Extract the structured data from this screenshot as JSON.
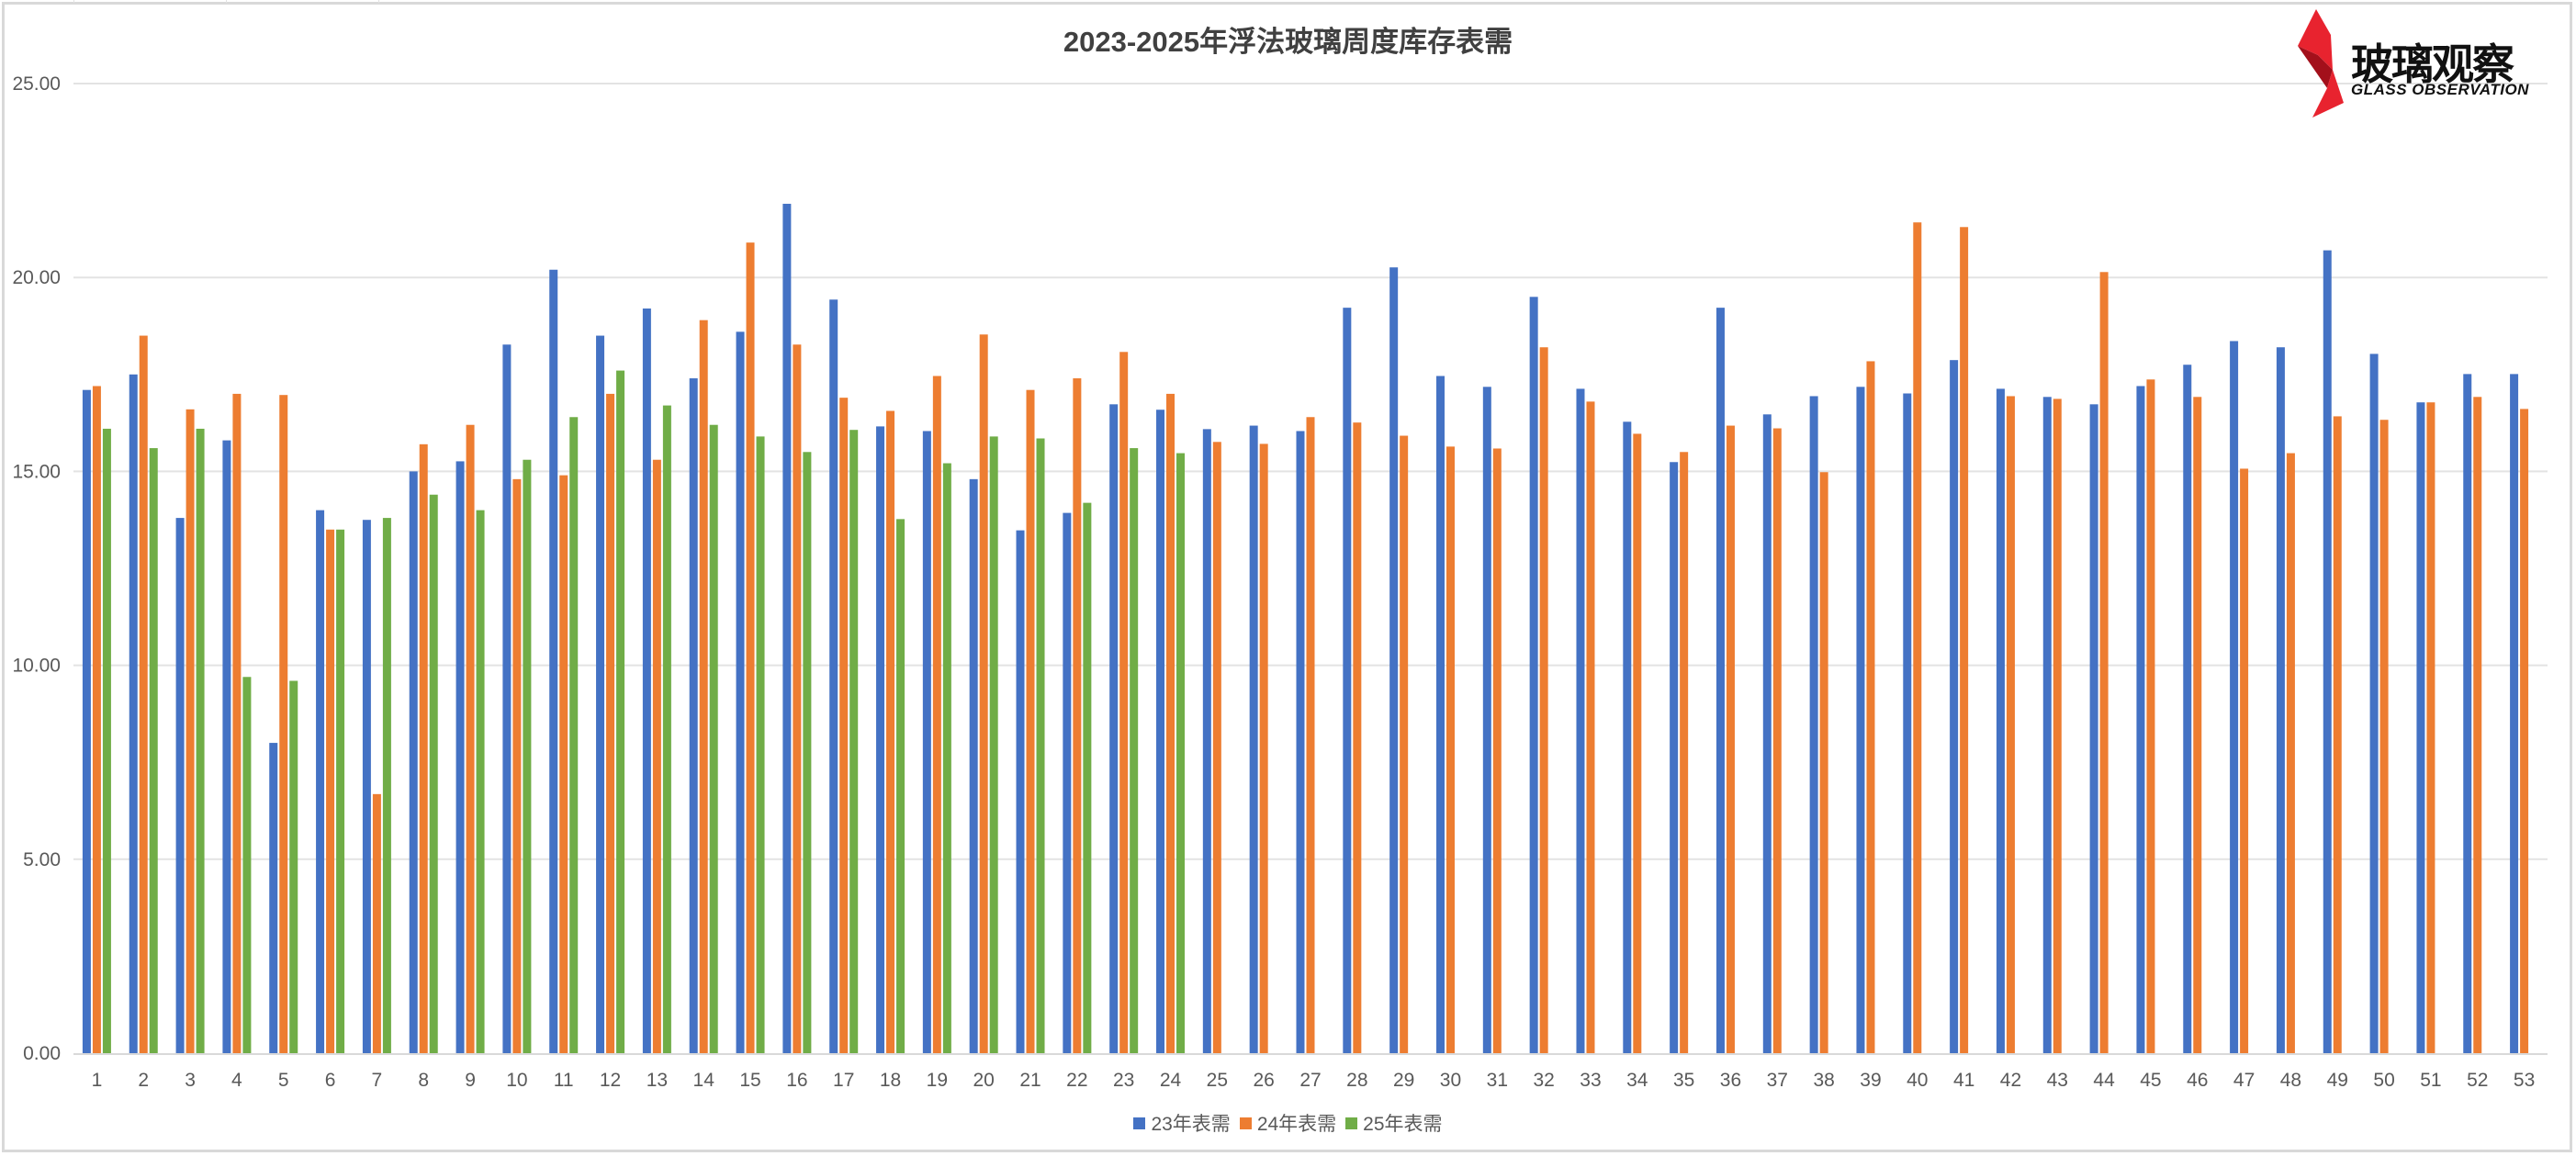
{
  "title": "2023-2025年浮法玻璃周度库存表需",
  "logo": {
    "cn_text": "玻璃观察",
    "en_text": "GLASS OBSERVATION",
    "accent_color": "#e8232f",
    "accent_dark": "#a3101b"
  },
  "legend": [
    {
      "label": "23年表需",
      "color": "#4472c4"
    },
    {
      "label": "24年表需",
      "color": "#ed7d31"
    },
    {
      "label": "25年表需",
      "color": "#70ad47"
    }
  ],
  "chart_data": {
    "type": "bar",
    "title": "2023-2025年浮法玻璃周度库存表需",
    "xlabel": "",
    "ylabel": "",
    "ylim": [
      0,
      25
    ],
    "y_ticks": [
      "0.00",
      "5.00",
      "10.00",
      "15.00",
      "20.00",
      "25.00"
    ],
    "grid": true,
    "legend_position": "bottom",
    "categories": [
      "1",
      "2",
      "3",
      "4",
      "5",
      "6",
      "7",
      "8",
      "9",
      "10",
      "11",
      "12",
      "13",
      "14",
      "15",
      "16",
      "17",
      "18",
      "19",
      "20",
      "21",
      "22",
      "23",
      "24",
      "25",
      "26",
      "27",
      "28",
      "29",
      "30",
      "31",
      "32",
      "33",
      "34",
      "35",
      "36",
      "37",
      "38",
      "39",
      "40",
      "41",
      "42",
      "43",
      "44",
      "45",
      "46",
      "47",
      "48",
      "49",
      "50",
      "51",
      "52",
      "53"
    ],
    "series": [
      {
        "name": "23年表需",
        "color": "#4472c4",
        "values": [
          17.1,
          17.5,
          13.8,
          15.8,
          8.0,
          14.0,
          13.75,
          15.0,
          15.26,
          18.27,
          20.2,
          18.5,
          19.2,
          17.4,
          18.6,
          21.9,
          19.43,
          16.16,
          16.04,
          14.8,
          13.48,
          13.93,
          16.73,
          16.59,
          16.09,
          16.18,
          16.04,
          19.22,
          20.26,
          17.46,
          17.18,
          19.5,
          17.13,
          16.28,
          15.24,
          19.22,
          16.47,
          16.94,
          17.18,
          17.01,
          17.87,
          17.13,
          16.92,
          16.73,
          17.2,
          17.75,
          18.36,
          18.2,
          20.7,
          18.03,
          16.78,
          17.51,
          17.51
        ]
      },
      {
        "name": "24年表需",
        "color": "#ed7d31",
        "values": [
          17.2,
          18.5,
          16.6,
          17.0,
          16.97,
          13.5,
          6.68,
          15.7,
          16.2,
          14.8,
          14.9,
          17.0,
          15.3,
          18.9,
          20.9,
          18.27,
          16.9,
          16.56,
          17.46,
          18.53,
          17.1,
          17.4,
          18.08,
          17.0,
          15.76,
          15.71,
          16.4,
          16.26,
          15.92,
          15.64,
          15.59,
          18.2,
          16.8,
          15.97,
          15.5,
          16.18,
          16.11,
          14.98,
          17.84,
          21.42,
          21.3,
          16.94,
          16.87,
          20.14,
          17.37,
          16.92,
          15.07,
          15.47,
          16.42,
          16.33,
          16.78,
          16.92,
          16.61
        ]
      },
      {
        "name": "25年表需",
        "color": "#70ad47",
        "values": [
          16.1,
          15.6,
          16.1,
          9.7,
          9.6,
          13.5,
          13.8,
          14.4,
          14.0,
          15.3,
          16.4,
          17.6,
          16.7,
          16.2,
          15.9,
          15.5,
          16.07,
          13.77,
          15.21,
          15.9,
          15.85,
          14.19,
          15.6,
          15.47,
          null,
          null,
          null,
          null,
          null,
          null,
          null,
          null,
          null,
          null,
          null,
          null,
          null,
          null,
          null,
          null,
          null,
          null,
          null,
          null,
          null,
          null,
          null,
          null,
          null,
          null,
          null,
          null,
          null
        ]
      }
    ]
  }
}
